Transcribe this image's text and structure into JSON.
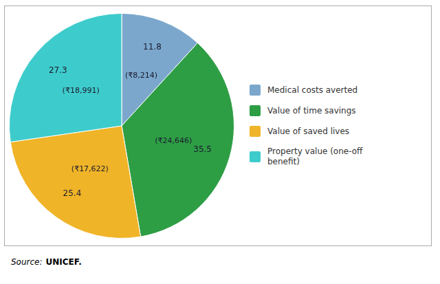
{
  "chart_data": {
    "type": "pie",
    "categories": [
      "Medical costs averted",
      "Value of time savings",
      "Value of saved lives",
      "Property value (one-off\nbenefit)"
    ],
    "values": [
      11.8,
      35.5,
      25.4,
      27.3
    ],
    "inner_labels": [
      "(₹8,214)",
      "(₹24,646)",
      "(₹17,622)",
      "(₹18,991)"
    ],
    "colors": [
      "#7ba7cc",
      "#2e9e45",
      "#f0b428",
      "#3ecbcb"
    ],
    "data_labels": true,
    "legend": "right",
    "annotations": [
      {
        "text": "Source:",
        "font_style": "italic"
      },
      {
        "text": "UNICEF.",
        "font_style": "bold"
      }
    ]
  }
}
